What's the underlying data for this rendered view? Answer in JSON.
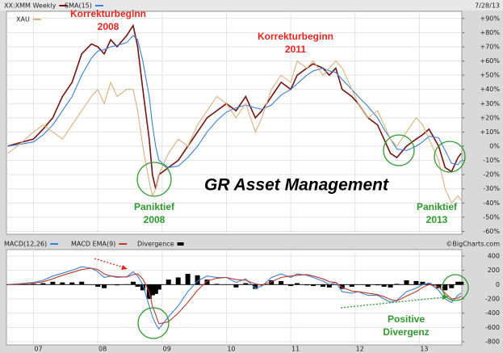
{
  "chart_data": [
    {
      "type": "line",
      "date": "7/28/13",
      "x": [
        2006.6,
        2006.75,
        2007.0,
        2007.15,
        2007.3,
        2007.45,
        2007.6,
        2007.75,
        2007.9,
        2008.0,
        2008.1,
        2008.2,
        2008.3,
        2008.45,
        2008.55,
        2008.62,
        2008.7,
        2008.8,
        2008.85,
        2008.9,
        2008.95,
        2009.1,
        2009.25,
        2009.4,
        2009.55,
        2009.7,
        2009.85,
        2010.0,
        2010.15,
        2010.3,
        2010.45,
        2010.55,
        2010.7,
        2010.85,
        2011.0,
        2011.1,
        2011.25,
        2011.35,
        2011.5,
        2011.6,
        2011.7,
        2011.8,
        2011.95,
        2012.05,
        2012.2,
        2012.35,
        2012.45,
        2012.55,
        2012.65,
        2012.8,
        2012.95,
        2013.05,
        2013.15,
        2013.3,
        2013.4,
        2013.5,
        2013.6,
        2013.65
      ],
      "series": [
        {
          "name": "XX:XMM Weekly",
          "color": "#7a1010",
          "values": [
            0,
            2,
            5,
            12,
            20,
            35,
            45,
            65,
            72,
            70,
            65,
            75,
            70,
            78,
            85,
            70,
            40,
            5,
            -20,
            -30,
            -20,
            -15,
            -10,
            0,
            10,
            20,
            25,
            30,
            25,
            35,
            20,
            25,
            35,
            45,
            40,
            50,
            55,
            58,
            55,
            50,
            55,
            40,
            35,
            30,
            20,
            15,
            5,
            -5,
            -8,
            0,
            5,
            8,
            12,
            0,
            -15,
            -18,
            -8,
            -5
          ]
        },
        {
          "name": "SMA(15)",
          "color": "#3b7fd9",
          "values": [
            0,
            1,
            3,
            8,
            15,
            25,
            35,
            50,
            62,
            67,
            68,
            70,
            71,
            73,
            78,
            75,
            60,
            35,
            15,
            0,
            -10,
            -15,
            -14,
            -8,
            0,
            10,
            18,
            24,
            27,
            29,
            27,
            26,
            29,
            36,
            40,
            44,
            50,
            53,
            55,
            53,
            52,
            47,
            40,
            35,
            28,
            20,
            12,
            5,
            -2,
            -3,
            0,
            3,
            7,
            6,
            -3,
            -12,
            -13,
            -10
          ]
        },
        {
          "name": "XAU",
          "color": "#d8b27a",
          "values": [
            -5,
            0,
            10,
            15,
            10,
            5,
            15,
            25,
            35,
            40,
            30,
            45,
            35,
            40,
            40,
            25,
            0,
            -25,
            -35,
            -30,
            -20,
            -5,
            5,
            0,
            15,
            25,
            35,
            30,
            20,
            30,
            10,
            20,
            40,
            50,
            45,
            60,
            55,
            60,
            50,
            55,
            60,
            55,
            40,
            30,
            20,
            25,
            15,
            5,
            0,
            10,
            20,
            15,
            5,
            -10,
            -30,
            -40,
            -35,
            -38
          ]
        }
      ],
      "xlim": [
        2006.58,
        2013.66
      ],
      "ylim": [
        -62,
        95
      ],
      "yticks": [
        {
          "value": 90,
          "label": "+90%"
        },
        {
          "value": 80,
          "label": "+80%"
        },
        {
          "value": 70,
          "label": "+70%"
        },
        {
          "value": 60,
          "label": "+60%"
        },
        {
          "value": 50,
          "label": "+50%"
        },
        {
          "value": 40,
          "label": "+40%"
        },
        {
          "value": 30,
          "label": "+30%"
        },
        {
          "value": 20,
          "label": "+20%"
        },
        {
          "value": 10,
          "label": "+10%"
        },
        {
          "value": 0,
          "label": "0%"
        },
        {
          "value": -10,
          "label": "-10%"
        },
        {
          "value": -20,
          "label": "-20%"
        },
        {
          "value": -30,
          "label": "-30%"
        },
        {
          "value": -40,
          "label": "-40%"
        },
        {
          "value": -50,
          "label": "-50%"
        },
        {
          "value": -60,
          "label": "-60%"
        }
      ],
      "grid": true,
      "annotations": [
        {
          "text": [
            "Korrekturbeginn",
            "2008"
          ],
          "color": "#e8231f"
        },
        {
          "text": [
            "Korrekturbeginn",
            "2011"
          ],
          "color": "#e8231f"
        },
        {
          "text": [
            "Paniktief",
            "2008"
          ],
          "color": "#2e9a2e"
        },
        {
          "text": [
            "Paniktief",
            "2013"
          ],
          "color": "#2e9a2e"
        },
        {
          "text": [
            "GR Asset Management"
          ],
          "color": "#000000"
        }
      ]
    },
    {
      "type": "line",
      "source": "©BigCharts.com",
      "x": [
        2006.6,
        2006.75,
        2007.0,
        2007.15,
        2007.3,
        2007.45,
        2007.6,
        2007.75,
        2007.9,
        2008.0,
        2008.1,
        2008.2,
        2008.3,
        2008.45,
        2008.55,
        2008.62,
        2008.7,
        2008.8,
        2008.85,
        2008.9,
        2008.95,
        2009.1,
        2009.25,
        2009.4,
        2009.55,
        2009.7,
        2009.85,
        2010.0,
        2010.15,
        2010.3,
        2010.45,
        2010.55,
        2010.7,
        2010.85,
        2011.0,
        2011.1,
        2011.25,
        2011.35,
        2011.5,
        2011.6,
        2011.7,
        2011.8,
        2011.95,
        2012.05,
        2012.2,
        2012.35,
        2012.45,
        2012.55,
        2012.65,
        2012.8,
        2012.95,
        2013.05,
        2013.15,
        2013.3,
        2013.4,
        2013.5,
        2013.6,
        2013.65
      ],
      "series": [
        {
          "name": "MACD(12,26)",
          "color": "#3b7fd9",
          "values": [
            0,
            10,
            30,
            60,
            120,
            160,
            200,
            250,
            230,
            180,
            100,
            120,
            100,
            110,
            180,
            120,
            0,
            -300,
            -450,
            -550,
            -620,
            -450,
            -300,
            -100,
            50,
            120,
            100,
            100,
            30,
            80,
            -50,
            -20,
            100,
            150,
            100,
            150,
            130,
            100,
            50,
            0,
            30,
            -100,
            -120,
            -100,
            -150,
            -150,
            -200,
            -250,
            -220,
            -100,
            -50,
            0,
            20,
            -80,
            -200,
            -250,
            -150,
            -120
          ]
        },
        {
          "name": "MACD EMA(9)",
          "color": "#c0392b",
          "values": [
            0,
            5,
            20,
            40,
            80,
            130,
            170,
            210,
            230,
            210,
            150,
            120,
            110,
            105,
            140,
            150,
            80,
            -100,
            -300,
            -420,
            -550,
            -520,
            -400,
            -250,
            -80,
            50,
            90,
            100,
            70,
            60,
            10,
            -10,
            40,
            100,
            120,
            130,
            140,
            120,
            80,
            40,
            30,
            -40,
            -90,
            -100,
            -120,
            -140,
            -170,
            -210,
            -230,
            -160,
            -100,
            -40,
            0,
            -30,
            -120,
            -200,
            -190,
            -160
          ]
        },
        {
          "name": "Divergence",
          "color": "#000000",
          "type": "bar",
          "values": [
            0,
            5,
            10,
            20,
            40,
            30,
            30,
            40,
            0,
            -30,
            -50,
            0,
            -10,
            5,
            40,
            -30,
            -80,
            -200,
            -150,
            -130,
            -70,
            70,
            100,
            150,
            130,
            70,
            10,
            0,
            -40,
            20,
            -60,
            -10,
            60,
            50,
            -20,
            20,
            -10,
            -20,
            -30,
            -40,
            0,
            -60,
            -30,
            0,
            -30,
            -10,
            -30,
            -40,
            10,
            60,
            50,
            40,
            20,
            -50,
            -80,
            -50,
            40,
            40
          ]
        }
      ],
      "xlim": [
        2006.58,
        2013.66
      ],
      "xticks": [
        {
          "value": 2007,
          "label": "07"
        },
        {
          "value": 2008,
          "label": "08"
        },
        {
          "value": 2009,
          "label": "09"
        },
        {
          "value": 2010,
          "label": "10"
        },
        {
          "value": 2011,
          "label": "11"
        },
        {
          "value": 2012,
          "label": "12"
        },
        {
          "value": 2013,
          "label": "13"
        }
      ],
      "ylim": [
        -845,
        490
      ],
      "yticks": [
        400,
        200,
        0,
        -200,
        -400,
        -600,
        -800
      ],
      "grid": true,
      "annotations": [
        {
          "text": [
            "Positive",
            "Divergenz"
          ],
          "color": "#2e9a2e"
        }
      ]
    }
  ]
}
